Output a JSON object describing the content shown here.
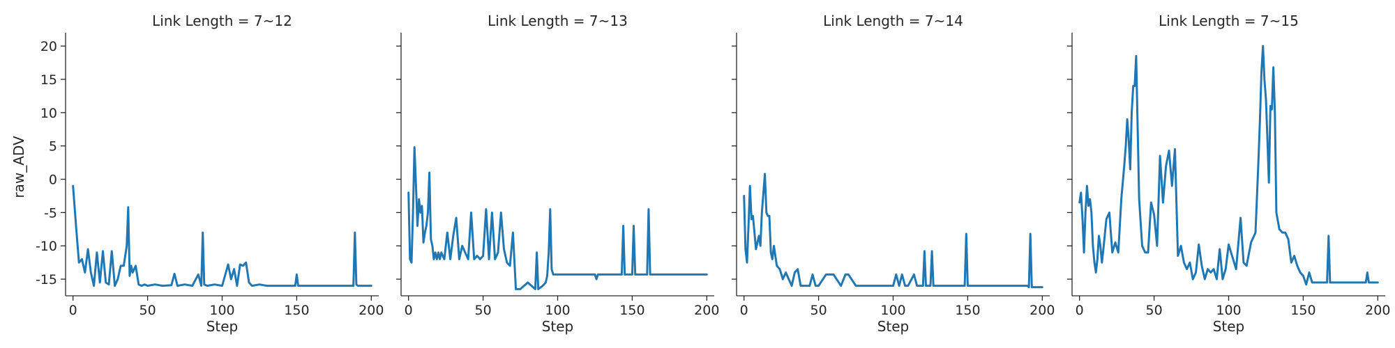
{
  "chart_data": {
    "type": "line",
    "ylabel": "raw_ADV",
    "xlabel": "Step",
    "xlim": [
      -5,
      205
    ],
    "ylim": [
      -17.5,
      22
    ],
    "x_ticks": [
      0,
      50,
      100,
      150,
      200
    ],
    "y_ticks": [
      20,
      15,
      10,
      5,
      0,
      -5,
      -10,
      -15
    ],
    "grid": false,
    "legend": "none",
    "line_color": "#1f77b4",
    "panels": [
      {
        "title": "Link Length = 7~12",
        "x": [
          0,
          2,
          4,
          6,
          8,
          10,
          12,
          14,
          16,
          18,
          20,
          22,
          24,
          26,
          28,
          30,
          32,
          34,
          36,
          37,
          38,
          39,
          40,
          42,
          44,
          46,
          48,
          50,
          55,
          60,
          66,
          68,
          70,
          75,
          80,
          84,
          86,
          87,
          88,
          90,
          95,
          100,
          104,
          106,
          108,
          110,
          112,
          114,
          116,
          118,
          120,
          125,
          130,
          149,
          150,
          151,
          160,
          188,
          189,
          190,
          191,
          200
        ],
        "values": [
          -1,
          -7,
          -12.5,
          -12,
          -14,
          -10.5,
          -14,
          -16,
          -11,
          -15.5,
          -10.8,
          -15.5,
          -15.8,
          -10.8,
          -16,
          -15,
          -13,
          -13,
          -10,
          -4.2,
          -14.5,
          -13,
          -14,
          -13,
          -15.8,
          -16,
          -15.8,
          -16,
          -15.8,
          -16,
          -15.9,
          -14.2,
          -16,
          -15.8,
          -16,
          -14.3,
          -16,
          -8,
          -15.8,
          -16,
          -15.8,
          -16,
          -12.8,
          -15,
          -13.5,
          -16,
          -12.8,
          -13,
          -12.5,
          -15.5,
          -16,
          -15.8,
          -16,
          -16,
          -14.3,
          -16,
          -16,
          -16,
          -8,
          -15.8,
          -16,
          -16
        ]
      },
      {
        "title": "Link Length = 7~13",
        "x": [
          0,
          1,
          2,
          3,
          4,
          5,
          6,
          7,
          8,
          9,
          10,
          11,
          12,
          13,
          14,
          15,
          16,
          17,
          18,
          19,
          20,
          21,
          22,
          24,
          26,
          28,
          30,
          32,
          34,
          36,
          38,
          40,
          42,
          44,
          46,
          48,
          50,
          52,
          54,
          56,
          58,
          60,
          62,
          64,
          66,
          68,
          70,
          72,
          75,
          80,
          85,
          86,
          87,
          90,
          92,
          93,
          94,
          95,
          96,
          97,
          100,
          110,
          120,
          125,
          126,
          127,
          130,
          143,
          144,
          145,
          150,
          151,
          152,
          160,
          161,
          162,
          200
        ],
        "values": [
          -2,
          -12,
          -12.5,
          -5,
          4.8,
          -1,
          -7,
          -3,
          -5,
          -4,
          -9.5,
          -8,
          -7,
          -5,
          1,
          -9,
          -10,
          -12,
          -11,
          -12,
          -11,
          -12,
          -11,
          -12,
          -8,
          -12,
          -8.5,
          -5.8,
          -12,
          -10,
          -11,
          -12,
          -5,
          -12,
          -11.5,
          -12,
          -11.5,
          -4.5,
          -12,
          -5,
          -12,
          -11,
          -5,
          -10.5,
          -12.5,
          -13,
          -8,
          -16.5,
          -16.5,
          -15.5,
          -16.5,
          -11,
          -16.5,
          -16,
          -15.5,
          -14.5,
          -11,
          -4.5,
          -13.5,
          -14.3,
          -14.3,
          -14.3,
          -14.3,
          -14.3,
          -15,
          -14.3,
          -14.3,
          -14.3,
          -7,
          -14.3,
          -14.3,
          -7,
          -14.3,
          -14.3,
          -4.5,
          -14.3,
          -14.3
        ]
      },
      {
        "title": "Link Length = 7~14",
        "x": [
          0,
          1,
          2,
          3,
          4,
          5,
          6,
          7,
          8,
          9,
          10,
          11,
          12,
          13,
          14,
          15,
          16,
          17,
          18,
          19,
          20,
          22,
          24,
          26,
          28,
          30,
          32,
          34,
          36,
          38,
          40,
          42,
          44,
          46,
          48,
          50,
          55,
          60,
          65,
          68,
          70,
          75,
          80,
          90,
          100,
          102,
          104,
          106,
          108,
          110,
          114,
          116,
          118,
          120,
          121,
          122,
          125,
          126,
          127,
          130,
          147,
          148,
          149,
          150,
          151,
          160,
          190,
          191,
          192,
          193,
          195,
          200
        ],
        "values": [
          -2.5,
          -10.5,
          -12.5,
          -7,
          -1,
          -6,
          -5.5,
          -8,
          -10.5,
          -9.5,
          -8.5,
          -10,
          -5,
          -2,
          0.8,
          -5,
          -5.5,
          -5.5,
          -11,
          -12,
          -10,
          -13,
          -13.5,
          -15,
          -14,
          -15,
          -16,
          -14,
          -13.5,
          -16,
          -16,
          -16,
          -16,
          -14.3,
          -16,
          -16,
          -14.3,
          -14.3,
          -16,
          -14.3,
          -14.3,
          -16,
          -16,
          -16,
          -16,
          -14.3,
          -16,
          -14.3,
          -16,
          -16,
          -14.3,
          -16,
          -16,
          -16,
          -10.8,
          -16,
          -16,
          -10.8,
          -16,
          -16,
          -16,
          -16,
          -8.2,
          -16,
          -16,
          -16,
          -16,
          -16.2,
          -8.2,
          -16.2,
          -16.2,
          -16.2
        ]
      },
      {
        "title": "Link Length = 7~15",
        "x": [
          0,
          1,
          2,
          3,
          4,
          5,
          6,
          7,
          8,
          9,
          10,
          11,
          12,
          13,
          14,
          15,
          16,
          18,
          20,
          22,
          24,
          26,
          28,
          30,
          31,
          32,
          33,
          34,
          35,
          36,
          37,
          38,
          40,
          42,
          44,
          46,
          48,
          50,
          52,
          54,
          56,
          58,
          60,
          62,
          64,
          66,
          68,
          70,
          72,
          74,
          76,
          78,
          80,
          82,
          84,
          86,
          88,
          90,
          92,
          94,
          96,
          98,
          100,
          105,
          108,
          110,
          112,
          115,
          118,
          120,
          121,
          122,
          123,
          124,
          125,
          126,
          127,
          128,
          129,
          130,
          131,
          132,
          134,
          136,
          138,
          140,
          142,
          144,
          146,
          148,
          150,
          152,
          154,
          156,
          160,
          166,
          167,
          168,
          170,
          180,
          190,
          192,
          193,
          194,
          200
        ],
        "values": [
          -3.5,
          -2,
          -6,
          -11,
          -5,
          -1,
          -4,
          -3,
          -5,
          -10,
          -12.5,
          -14,
          -12,
          -8.5,
          -10,
          -12.5,
          -10.5,
          -6,
          -5,
          -11,
          -9.5,
          -11,
          -3,
          2,
          5,
          9,
          6,
          1.5,
          10,
          14,
          14,
          18.5,
          -3,
          -10,
          -11,
          -11,
          -3.5,
          -5.3,
          -10,
          3.5,
          -3.5,
          2,
          4.3,
          -1,
          4.5,
          -11.5,
          -10,
          -12.5,
          -13.5,
          -12.5,
          -15,
          -14,
          -9.8,
          -13,
          -15,
          -13.5,
          -14,
          -13.5,
          -15,
          -10.5,
          -15,
          -13.5,
          -9.8,
          -13.5,
          -5.8,
          -12.5,
          -13,
          -9.5,
          -8,
          3,
          9,
          16,
          20,
          15,
          12,
          6,
          -0.5,
          11,
          10.5,
          16.8,
          10,
          -5,
          -7.5,
          -8,
          -8,
          -9,
          -12.5,
          -11.5,
          -13,
          -14,
          -14.5,
          -15.8,
          -14,
          -15.5,
          -15.5,
          -15.5,
          -8.5,
          -15.5,
          -15.5,
          -15.5,
          -15.5,
          -15.5,
          -14,
          -15.5,
          -15.5
        ]
      }
    ]
  }
}
